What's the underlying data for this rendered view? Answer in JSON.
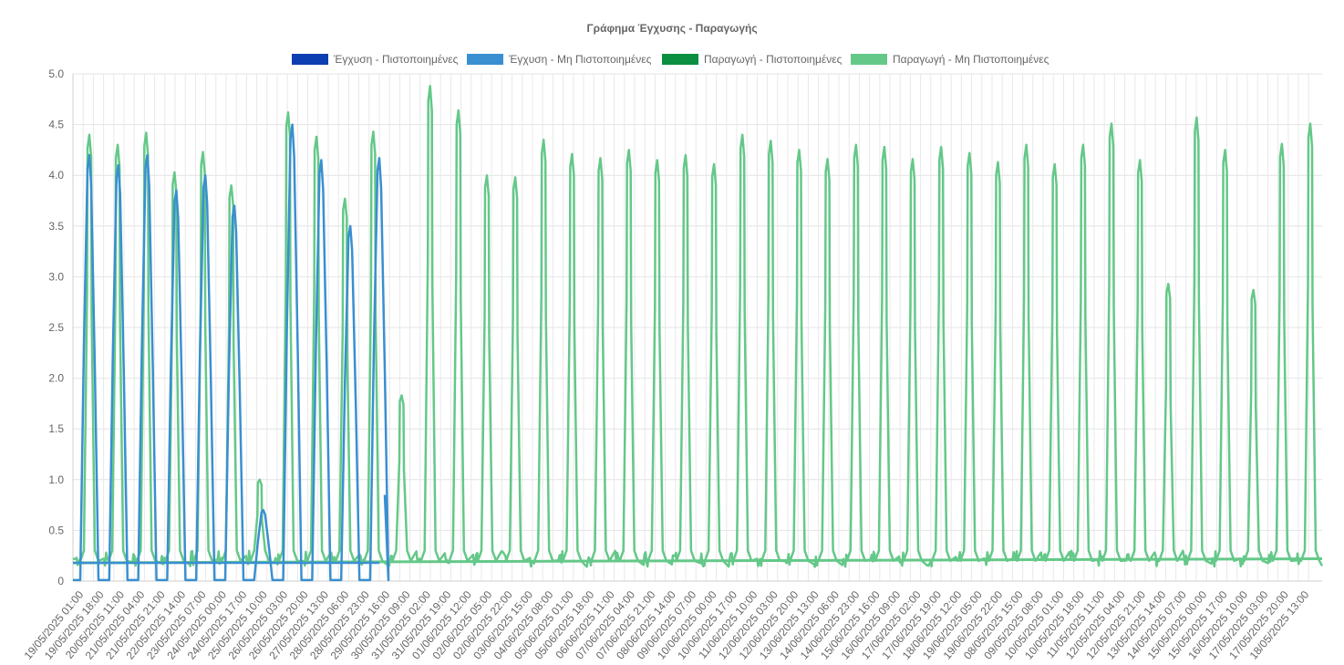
{
  "chart_data": {
    "type": "line",
    "title": "Γράφημα Έγχυσης - Παραγωγής",
    "xlabel": "",
    "ylabel": "",
    "ylim": [
      0,
      5.0
    ],
    "yticks": [
      "0",
      "0.5",
      "1.0",
      "1.5",
      "2.0",
      "2.5",
      "3.0",
      "3.5",
      "4.0",
      "4.5",
      "5.0"
    ],
    "grid": true,
    "legend_position": "top",
    "categories": [
      "19/05/2025 01:00",
      "19/05/2025 18:00",
      "20/05/2025 11:00",
      "21/05/2025 04:00",
      "21/05/2025 21:00",
      "22/05/2025 14:00",
      "23/05/2025 07:00",
      "24/05/2025 00:00",
      "24/05/2025 17:00",
      "25/05/2025 10:00",
      "26/05/2025 03:00",
      "26/05/2025 20:00",
      "27/05/2025 13:00",
      "28/05/2025 06:00",
      "28/05/2025 23:00",
      "29/05/2025 16:00",
      "30/05/2025 09:00",
      "31/05/2025 02:00",
      "31/05/2025 19:00",
      "01/06/2025 12:00",
      "02/06/2025 05:00",
      "02/06/2025 22:00",
      "03/06/2025 15:00",
      "04/06/2025 08:00",
      "05/06/2025 01:00",
      "05/06/2025 18:00",
      "06/06/2025 11:00",
      "07/06/2025 04:00",
      "07/06/2025 21:00",
      "08/06/2025 14:00",
      "09/06/2025 07:00",
      "10/06/2025 00:00",
      "10/06/2025 17:00",
      "11/06/2025 10:00",
      "12/06/2025 03:00",
      "12/06/2025 20:00",
      "13/06/2025 13:00",
      "14/06/2025 06:00",
      "14/06/2025 23:00",
      "15/06/2025 16:00",
      "16/06/2025 09:00",
      "17/06/2025 02:00",
      "17/06/2025 19:00",
      "18/06/2025 12:00",
      "19/06/2025 05:00",
      "19/06/2025 22:00",
      "08/05/2025 15:00",
      "09/05/2025 08:00",
      "10/05/2025 01:00",
      "10/05/2025 18:00",
      "11/05/2025 11:00",
      "12/05/2025 04:00",
      "12/05/2025 21:00",
      "13/05/2025 14:00",
      "14/05/2025 07:00",
      "15/05/2025 00:00",
      "15/05/2025 17:00",
      "16/05/2025 10:00",
      "17/05/2025 03:00",
      "17/05/2025 20:00",
      "18/05/2025 13:00"
    ],
    "series": [
      {
        "name": "Έγχυση - Πιστοποιημένες",
        "color": "#0d3fb3",
        "peaks": []
      },
      {
        "name": "Έγχυση - Μη Πιστοποιημένες",
        "color": "#3a8fd0",
        "peaks": [
          4.2,
          4.1,
          4.2,
          3.85,
          4.0,
          3.7,
          0.7,
          4.5,
          4.15,
          3.5,
          4.17
        ]
      },
      {
        "name": "Παραγωγή - Πιστοποιημένες",
        "color": "#0a9040",
        "peaks": []
      },
      {
        "name": "Παραγωγή - Μη Πιστοποιημένες",
        "color": "#64c888",
        "peaks": [
          4.4,
          4.3,
          4.42,
          4.03,
          4.23,
          3.9,
          1.0,
          4.62,
          4.38,
          3.77,
          4.43,
          1.83,
          4.88,
          4.64,
          4.0,
          3.98,
          4.35,
          4.21,
          4.17,
          4.25,
          4.15,
          4.2,
          4.11,
          4.4,
          4.34,
          4.25,
          4.16,
          4.3,
          4.28,
          4.16,
          4.28,
          4.22,
          4.13,
          4.3,
          4.11,
          4.3,
          4.51,
          4.15,
          2.93,
          4.57,
          4.25,
          2.87,
          4.31,
          4.51
        ]
      }
    ]
  }
}
